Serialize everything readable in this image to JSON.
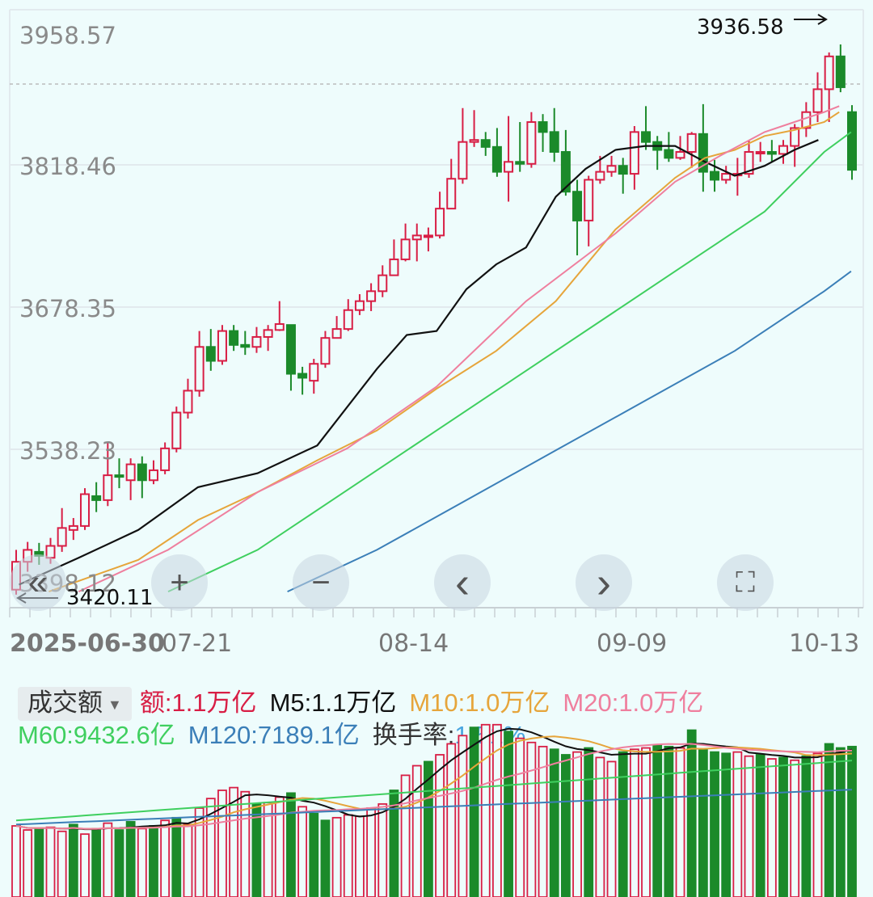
{
  "price_axis": {
    "ticks": [
      "3958.57",
      "3818.46",
      "3678.35",
      "3538.23",
      "3398.12"
    ],
    "high_marker": "3936.58",
    "low_marker": "3420.11"
  },
  "date_axis": {
    "labels": [
      "2025-06-30",
      "07-21",
      "08-14",
      "09-09",
      "10-13"
    ]
  },
  "controls": {
    "rewind": "«",
    "zoom_in": "+",
    "zoom_out": "−",
    "prev": "‹",
    "next": "›",
    "fullscreen": "⛶"
  },
  "volume_header": {
    "metric": "成交额",
    "amount_label": "额:",
    "amount_value": "1.1万亿",
    "m5_label": "M5:",
    "m5_value": "1.1万亿",
    "m10_label": "M10:",
    "m10_value": "1.0万亿",
    "m20_label": "M20:",
    "m20_value": "1.0万亿",
    "m60_label": "M60:",
    "m60_value": "9432.6亿",
    "m120_label": "M120:",
    "m120_value": "7189.1亿",
    "turnover_label": "换手率:",
    "turnover_value": "1.51%"
  },
  "colors": {
    "up": "#d81e45",
    "down": "#1b8a2a",
    "m5": "#111111",
    "m10": "#e6a53b",
    "m20": "#ef7f9e",
    "m60": "#3fcf5f",
    "m120": "#3b7fb8",
    "grid": "#e2eaee",
    "axis_text": "#8a8a8a"
  },
  "chart_data": [
    {
      "type": "candlestick",
      "ylim": [
        3398.12,
        3958.57
      ],
      "candles": [
        [
          3400,
          3428,
          3440,
          3395
        ],
        [
          3428,
          3440,
          3448,
          3418
        ],
        [
          3438,
          3434,
          3447,
          3425
        ],
        [
          3432,
          3444,
          3452,
          3426
        ],
        [
          3444,
          3462,
          3482,
          3438
        ],
        [
          3460,
          3464,
          3472,
          3450
        ],
        [
          3464,
          3496,
          3502,
          3460
        ],
        [
          3494,
          3490,
          3508,
          3478
        ],
        [
          3490,
          3515,
          3548,
          3484
        ],
        [
          3515,
          3514,
          3532,
          3502
        ],
        [
          3510,
          3526,
          3532,
          3490
        ],
        [
          3526,
          3510,
          3534,
          3492
        ],
        [
          3510,
          3520,
          3530,
          3506
        ],
        [
          3520,
          3542,
          3548,
          3516
        ],
        [
          3542,
          3578,
          3584,
          3538
        ],
        [
          3578,
          3600,
          3612,
          3572
        ],
        [
          3600,
          3644,
          3660,
          3594
        ],
        [
          3644,
          3630,
          3662,
          3620
        ],
        [
          3630,
          3660,
          3666,
          3626
        ],
        [
          3660,
          3646,
          3666,
          3640
        ],
        [
          3646,
          3644,
          3660,
          3636
        ],
        [
          3644,
          3654,
          3664,
          3638
        ],
        [
          3654,
          3661,
          3666,
          3640
        ],
        [
          3661,
          3667,
          3690,
          3660
        ],
        [
          3666,
          3617,
          3620,
          3600
        ],
        [
          3617,
          3613,
          3624,
          3596
        ],
        [
          3610,
          3627,
          3632,
          3597
        ],
        [
          3627,
          3653,
          3660,
          3623
        ],
        [
          3653,
          3662,
          3675,
          3653
        ],
        [
          3662,
          3681,
          3692,
          3660
        ],
        [
          3681,
          3690,
          3697,
          3676
        ],
        [
          3690,
          3700,
          3708,
          3680
        ],
        [
          3700,
          3716,
          3726,
          3694
        ],
        [
          3716,
          3732,
          3752,
          3716
        ],
        [
          3732,
          3752,
          3768,
          3730
        ],
        [
          3752,
          3756,
          3768,
          3730
        ],
        [
          3756,
          3756,
          3764,
          3740
        ],
        [
          3756,
          3783,
          3800,
          3753
        ],
        [
          3783,
          3813,
          3833,
          3783
        ],
        [
          3813,
          3850,
          3884,
          3808
        ],
        [
          3850,
          3852,
          3882,
          3845
        ],
        [
          3852,
          3845,
          3860,
          3836
        ],
        [
          3845,
          3820,
          3864,
          3815
        ],
        [
          3820,
          3830,
          3876,
          3790
        ],
        [
          3830,
          3828,
          3870,
          3820
        ],
        [
          3828,
          3870,
          3880,
          3824
        ],
        [
          3870,
          3860,
          3878,
          3840
        ],
        [
          3860,
          3840,
          3884,
          3830
        ],
        [
          3840,
          3800,
          3862,
          3796
        ],
        [
          3800,
          3771,
          3812,
          3736
        ],
        [
          3771,
          3812,
          3816,
          3745
        ],
        [
          3812,
          3820,
          3836,
          3808
        ],
        [
          3820,
          3826,
          3836,
          3815
        ],
        [
          3826,
          3818,
          3834,
          3798
        ],
        [
          3818,
          3860,
          3866,
          3802
        ],
        [
          3860,
          3850,
          3886,
          3842
        ],
        [
          3850,
          3842,
          3856,
          3822
        ],
        [
          3842,
          3834,
          3860,
          3830
        ],
        [
          3834,
          3840,
          3856,
          3832
        ],
        [
          3840,
          3858,
          3860,
          3824
        ],
        [
          3858,
          3820,
          3888,
          3800
        ],
        [
          3820,
          3812,
          3832,
          3800
        ],
        [
          3812,
          3818,
          3826,
          3808
        ],
        [
          3818,
          3818,
          3834,
          3796
        ],
        [
          3818,
          3840,
          3852,
          3814
        ],
        [
          3840,
          3840,
          3850,
          3830
        ],
        [
          3840,
          3838,
          3852,
          3830
        ],
        [
          3838,
          3846,
          3852,
          3828
        ],
        [
          3846,
          3864,
          3868,
          3825
        ],
        [
          3864,
          3880,
          3890,
          3855
        ],
        [
          3880,
          3903,
          3920,
          3870
        ],
        [
          3903,
          3936,
          3940,
          3870
        ],
        [
          3936,
          3905,
          3948,
          3900
        ],
        [
          3880,
          3822,
          3887,
          3812
        ]
      ],
      "moving_averages": {
        "M5": [
          [
            3400,
            3405
          ],
          [
            3440,
            3432
          ],
          [
            3480,
            3460
          ],
          [
            3520,
            3503
          ],
          [
            3560,
            3517
          ],
          [
            3600,
            3545
          ],
          [
            3640,
            3622
          ],
          [
            3660,
            3656
          ],
          [
            3680,
            3660
          ],
          [
            3700,
            3702
          ],
          [
            3720,
            3727
          ],
          [
            3740,
            3744
          ],
          [
            3760,
            3795
          ],
          [
            3780,
            3823
          ],
          [
            3800,
            3842
          ],
          [
            3820,
            3846
          ],
          [
            3840,
            3846
          ],
          [
            3860,
            3830
          ],
          [
            3880,
            3816
          ],
          [
            3900,
            3826
          ],
          [
            3920,
            3842
          ],
          [
            3936,
            3852
          ]
        ],
        "M10": [
          [
            3420,
            3398
          ],
          [
            3480,
            3430
          ],
          [
            3520,
            3470
          ],
          [
            3560,
            3498
          ],
          [
            3600,
            3530
          ],
          [
            3640,
            3560
          ],
          [
            3680,
            3602
          ],
          [
            3720,
            3640
          ],
          [
            3760,
            3690
          ],
          [
            3800,
            3762
          ],
          [
            3840,
            3814
          ],
          [
            3860,
            3834
          ],
          [
            3880,
            3842
          ],
          [
            3900,
            3856
          ],
          [
            3920,
            3862
          ],
          [
            3940,
            3870
          ],
          [
            3950,
            3880
          ]
        ],
        "M20": [
          [
            3440,
            3398
          ],
          [
            3500,
            3440
          ],
          [
            3560,
            3498
          ],
          [
            3620,
            3542
          ],
          [
            3680,
            3604
          ],
          [
            3740,
            3690
          ],
          [
            3800,
            3758
          ],
          [
            3840,
            3810
          ],
          [
            3870,
            3836
          ],
          [
            3900,
            3860
          ],
          [
            3920,
            3870
          ],
          [
            3940,
            3880
          ],
          [
            3950,
            3886
          ]
        ],
        "M60": [
          [
            3500,
            3398
          ],
          [
            3560,
            3440
          ],
          [
            3620,
            3500
          ],
          [
            3680,
            3560
          ],
          [
            3740,
            3620
          ],
          [
            3800,
            3680
          ],
          [
            3860,
            3740
          ],
          [
            3900,
            3780
          ],
          [
            3940,
            3840
          ],
          [
            3958,
            3860
          ]
        ],
        "M120": [
          [
            3580,
            3398
          ],
          [
            3640,
            3440
          ],
          [
            3700,
            3490
          ],
          [
            3760,
            3540
          ],
          [
            3820,
            3590
          ],
          [
            3880,
            3640
          ],
          [
            3940,
            3700
          ],
          [
            3958,
            3720
          ]
        ]
      }
    },
    {
      "type": "bar",
      "title": "成交额",
      "values": [
        5.2,
        4.9,
        5.0,
        5.1,
        4.8,
        5.3,
        4.6,
        5.0,
        5.4,
        4.9,
        5.5,
        5.0,
        5.2,
        5.6,
        5.8,
        5.3,
        6.5,
        7.2,
        7.8,
        8.0,
        7.7,
        6.8,
        6.9,
        7.3,
        7.6,
        6.6,
        6.1,
        5.6,
        5.8,
        6.0,
        5.9,
        6.5,
        6.8,
        7.8,
        8.9,
        9.6,
        9.9,
        10.4,
        11.2,
        11.8,
        12.4,
        12.6,
        12.6,
        12.1,
        11.6,
        11.3,
        11.0,
        10.8,
        10.4,
        10.6,
        10.9,
        10.2,
        9.9,
        10.6,
        10.8,
        10.9,
        11.1,
        11.0,
        10.9,
        12.2,
        10.8,
        10.6,
        10.5,
        10.6,
        10.3,
        10.4,
        10.1,
        10.2,
        10.0,
        10.3,
        10.5,
        11.2,
        10.9,
        11.0
      ],
      "down_bars": [
        2,
        5,
        7,
        9,
        10,
        12,
        14,
        21,
        24,
        26,
        27,
        33,
        36,
        40,
        43,
        47,
        48,
        50,
        53,
        56,
        57,
        59,
        60,
        61,
        62,
        65,
        67,
        69,
        71,
        72,
        73
      ],
      "series": [
        {
          "name": "M5"
        },
        {
          "name": "M10"
        },
        {
          "name": "M20"
        },
        {
          "name": "M60"
        },
        {
          "name": "M120"
        }
      ]
    }
  ]
}
